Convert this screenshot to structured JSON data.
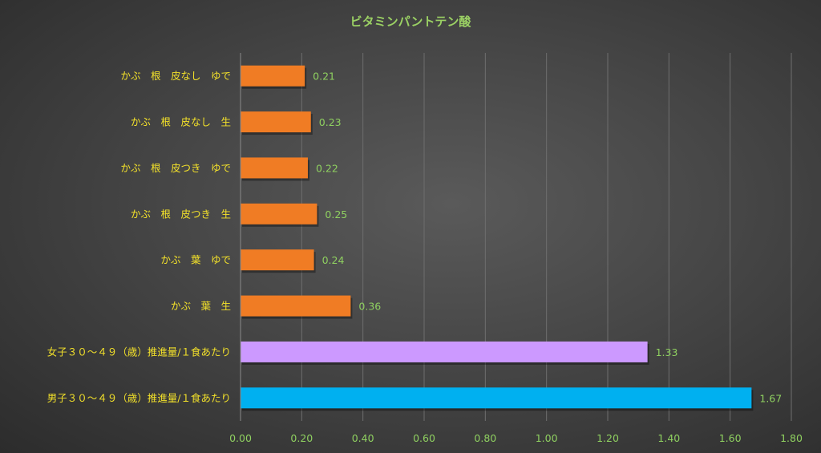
{
  "chart_data": {
    "type": "bar",
    "orientation": "horizontal",
    "title": "ビタミンパントテン酸",
    "categories": [
      "かぶ　根　皮なし　ゆで",
      "かぶ　根　皮なし　生",
      "かぶ　根　皮つき　ゆで",
      "かぶ　根　皮つき　生",
      "かぶ　葉　ゆで",
      "かぶ　葉　生",
      "女子３０～４９（歳）推進量/１食あたり",
      "男子３０～４９（歳）推進量/１食あたり"
    ],
    "values": [
      0.21,
      0.23,
      0.22,
      0.25,
      0.24,
      0.36,
      1.33,
      1.67
    ],
    "value_labels": [
      "0.21",
      "0.23",
      "0.22",
      "0.25",
      "0.24",
      "0.36",
      "1.33",
      "1.67"
    ],
    "bar_colors": [
      "#f07c24",
      "#f07c24",
      "#f07c24",
      "#f07c24",
      "#f07c24",
      "#f07c24",
      "#cc99ff",
      "#00b0f0"
    ],
    "xlim": [
      0,
      1.8
    ],
    "x_ticks": [
      "0.00",
      "0.20",
      "0.40",
      "0.60",
      "0.80",
      "1.00",
      "1.20",
      "1.40",
      "1.60",
      "1.80"
    ],
    "grid": true,
    "legend": "none",
    "colors": {
      "title": "#9bd164",
      "category_labels": "#f2e02a",
      "value_labels": "#8fd060",
      "tick_labels": "#8fd060"
    }
  }
}
